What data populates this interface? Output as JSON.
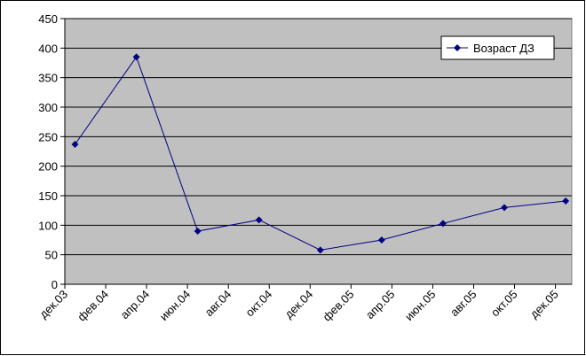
{
  "chart_data": {
    "type": "line",
    "categories": [
      "дек.03",
      "фев.04",
      "апр.04",
      "июн.04",
      "авг.04",
      "окт.04",
      "дек.04",
      "фев.05",
      "апр.05",
      "июн.05",
      "авг.05",
      "окт.05",
      "дек.05"
    ],
    "series": [
      {
        "name": "Возраст ДЗ",
        "color": "#000080",
        "x": [
          0.25,
          1.75,
          3.25,
          4.75,
          6.25,
          7.75,
          9.25,
          10.75,
          12.25
        ],
        "values": [
          237,
          385,
          90,
          109,
          58,
          75,
          103,
          130,
          141
        ]
      }
    ],
    "xlim": [
      0,
      12.4
    ],
    "ylim": [
      0,
      450
    ],
    "yticks": [
      0,
      50,
      100,
      150,
      200,
      250,
      300,
      350,
      400,
      450
    ],
    "grid": true,
    "legend": "upper-right",
    "plot_background": "#c0c0c0"
  }
}
